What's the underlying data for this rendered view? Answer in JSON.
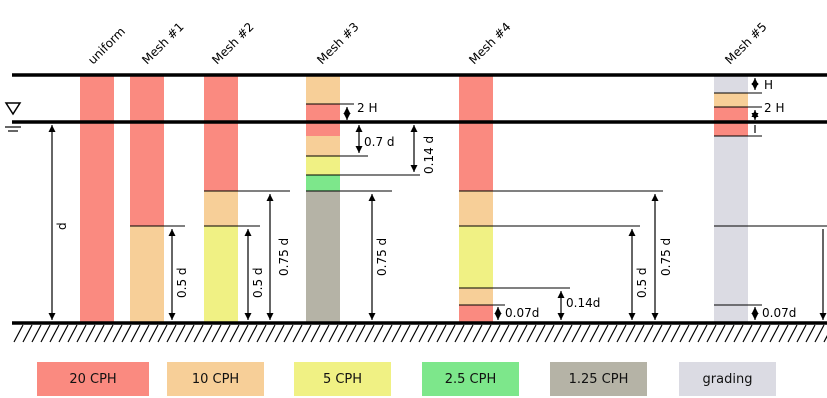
{
  "meshes": [
    {
      "name": "uniform"
    },
    {
      "name": "Mesh #1"
    },
    {
      "name": "Mesh #2"
    },
    {
      "name": "Mesh #3"
    },
    {
      "name": "Mesh #4"
    },
    {
      "name": "Mesh #5"
    }
  ],
  "labels": {
    "d": "d",
    "h_05d": "0.5 d",
    "h_075d": "0.75 d",
    "h_2H": "2 H",
    "h_H": "H",
    "h_07d": "0.7 d",
    "h_014d_mesh3": "0.14 d",
    "h_007d": "0.07d",
    "h_014d": "0.14d"
  },
  "legend": [
    {
      "label": "20 CPH",
      "color": "#fa8a80"
    },
    {
      "label": "10 CPH",
      "color": "#f7cf98"
    },
    {
      "label": "5 CPH",
      "color": "#f0f184"
    },
    {
      "label": "2.5 CPH",
      "color": "#7de78b"
    },
    {
      "label": "1.25 CPH",
      "color": "#b5b3a6"
    },
    {
      "label": "grading",
      "color": "#dbdbe3"
    }
  ]
}
